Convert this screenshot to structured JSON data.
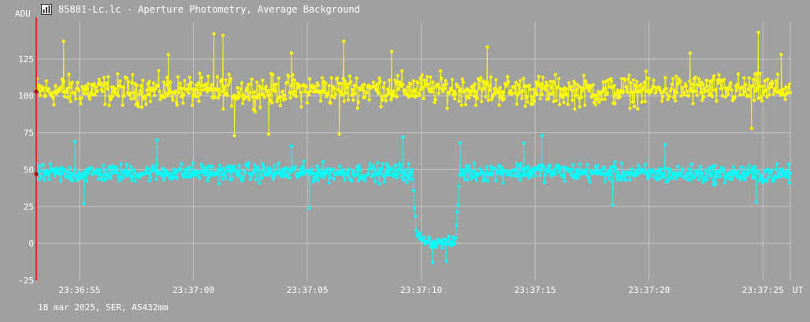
{
  "window": {
    "title": "85881-Lc.lc - Aperture Photometry, Average Background",
    "icon": "chart-window-icon"
  },
  "footer": {
    "caption": "18 mar 2025, SER, AS432mm"
  },
  "colors": {
    "background": "#a0a0a0",
    "grid": "#c4c4c4",
    "series_target": "#ffff00",
    "series_comparison": "#00ffff",
    "cursor": "#ff0000",
    "text": "#ffffff"
  },
  "chart_data": {
    "type": "line",
    "ylabel": "ADU",
    "xunit": "UT",
    "ylim": [
      -25,
      150
    ],
    "yticks": [
      -25,
      0,
      25,
      50,
      75,
      100,
      125
    ],
    "xlim": [
      "23:36:53.1",
      "23:37:26.2"
    ],
    "xticks": [
      "23:36:55",
      "23:37:00",
      "23:37:05",
      "23:37:10",
      "23:37:15",
      "23:37:20",
      "23:37:25"
    ],
    "grid": true,
    "legend": "none",
    "cursor_x": "23:36:53.1",
    "series": [
      {
        "color": "#ffff00",
        "marker": "dot",
        "trend": [
          [
            "23:36:53.1",
            103
          ],
          [
            "23:36:57.0",
            104
          ],
          [
            "23:37:01.0",
            103
          ],
          [
            "23:37:05.0",
            104
          ],
          [
            "23:37:09.0",
            105
          ],
          [
            "23:37:13.0",
            104
          ],
          [
            "23:37:17.0",
            103
          ],
          [
            "23:37:21.0",
            104
          ],
          [
            "23:37:26.2",
            104
          ]
        ],
        "scatter_amplitude": 15,
        "spike_high": [
          [
            "23:36:54.3",
            137
          ],
          [
            "23:36:58.9",
            128
          ],
          [
            "23:37:00.9",
            142
          ],
          [
            "23:37:01.3",
            141
          ],
          [
            "23:37:04.3",
            129
          ],
          [
            "23:37:06.6",
            137
          ],
          [
            "23:37:08.7",
            130
          ],
          [
            "23:37:12.9",
            133
          ],
          [
            "23:37:21.8",
            129
          ],
          [
            "23:37:24.8",
            143
          ],
          [
            "23:37:25.8",
            128
          ]
        ],
        "spike_low": [
          [
            "23:37:01.8",
            73
          ],
          [
            "23:37:03.3",
            74
          ],
          [
            "23:37:06.4",
            74
          ],
          [
            "23:37:24.5",
            78
          ]
        ]
      },
      {
        "color": "#00ffff",
        "marker": "dot",
        "trend": [
          [
            "23:36:53.1",
            47
          ],
          [
            "23:36:58.0",
            48
          ],
          [
            "23:37:03.0",
            48
          ],
          [
            "23:37:09.6",
            48
          ],
          [
            "23:37:09.8",
            5
          ],
          [
            "23:37:10.6",
            0
          ],
          [
            "23:37:11.5",
            1
          ],
          [
            "23:37:11.7",
            48
          ],
          [
            "23:37:15.0",
            49
          ],
          [
            "23:37:20.0",
            47
          ],
          [
            "23:37:26.2",
            47
          ]
        ],
        "scatter_amplitude": 9,
        "dip_scatter_amplitude": 5,
        "spike_high": [
          [
            "23:36:54.8",
            69
          ],
          [
            "23:36:58.4",
            70
          ],
          [
            "23:37:04.3",
            66
          ],
          [
            "23:37:09.2",
            72
          ],
          [
            "23:37:11.7",
            68
          ],
          [
            "23:37:14.5",
            68
          ],
          [
            "23:37:15.3",
            73
          ],
          [
            "23:37:20.7",
            67
          ]
        ],
        "spike_low": [
          [
            "23:36:55.2",
            27
          ],
          [
            "23:37:05.1",
            24
          ],
          [
            "23:37:18.4",
            26
          ],
          [
            "23:37:24.7",
            28
          ],
          [
            "23:37:10.5",
            -13
          ],
          [
            "23:37:11.1",
            -12
          ]
        ]
      }
    ]
  }
}
